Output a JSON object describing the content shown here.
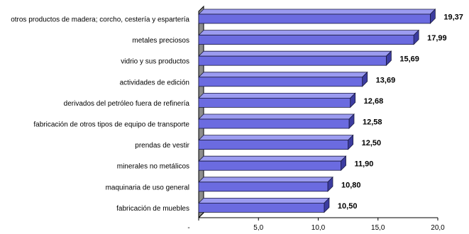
{
  "chart_data": {
    "type": "bar",
    "orientation": "horizontal",
    "style": "3d",
    "categories": [
      "otros productos de madera; corcho, cestería y espartería",
      "metales preciosos",
      "vidrio y sus productos",
      "actividades de edición",
      "derivados del petróleo fuera de refinería",
      "fabricación de otros tipos de equipo de transporte",
      "prendas de vestir",
      "minerales no metálicos",
      "maquinaria de uso general",
      "fabricación de muebles"
    ],
    "values": [
      19.37,
      17.99,
      15.69,
      13.69,
      12.68,
      12.58,
      12.5,
      11.9,
      10.8,
      10.5
    ],
    "value_labels": [
      "19,37",
      "17,99",
      "15,69",
      "13,69",
      "12,68",
      "12,58",
      "12,50",
      "11,90",
      "10,80",
      "10,50"
    ],
    "x_ticks": [
      {
        "value": 0,
        "label": "-"
      },
      {
        "value": 5,
        "label": "5,0"
      },
      {
        "value": 10,
        "label": "10,0"
      },
      {
        "value": 15,
        "label": "15,0"
      },
      {
        "value": 20,
        "label": "20,0"
      }
    ],
    "xlim": [
      0,
      20
    ],
    "grid": false,
    "legend": false,
    "colors": {
      "bar_front": "#6b6be0",
      "bar_top": "#9b9bf0",
      "bar_side": "#3c3ca0",
      "bar_edge": "#1a1a40",
      "wall": "#8c8c8c",
      "wall_edge": "#000000"
    }
  }
}
